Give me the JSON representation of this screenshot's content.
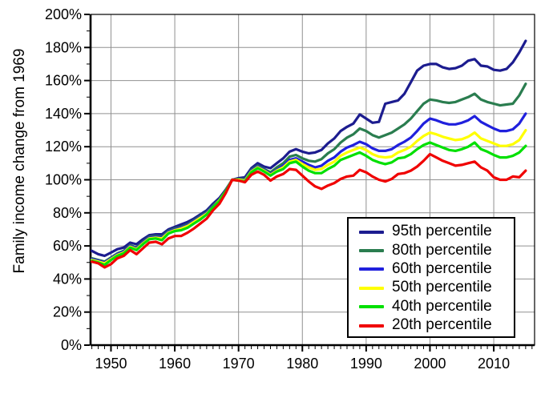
{
  "chart_data": {
    "type": "line",
    "title": "",
    "xlabel": "",
    "ylabel": "Family income change from 1969",
    "xlim": [
      1946.8,
      2016.4
    ],
    "ylim": [
      0,
      200
    ],
    "grid": true,
    "legend_position": "bottom-right",
    "x_major_ticks": [
      1950,
      1960,
      1970,
      1980,
      1990,
      2000,
      2010
    ],
    "x_tick_labels": [
      "1950",
      "1960",
      "1970",
      "1980",
      "1990",
      "2000",
      "2010"
    ],
    "x_minor_tick_step": 1,
    "y_major_ticks": [
      0,
      20,
      40,
      60,
      80,
      100,
      120,
      140,
      160,
      180,
      200
    ],
    "y_tick_labels": [
      "0%",
      "20%",
      "40%",
      "60%",
      "80%",
      "100%",
      "120%",
      "140%",
      "160%",
      "180%",
      "200%"
    ],
    "y_minor_tick_step": 10,
    "grid_color": "#909090",
    "x": [
      1947,
      1948,
      1949,
      1950,
      1951,
      1952,
      1953,
      1954,
      1955,
      1956,
      1957,
      1958,
      1959,
      1960,
      1961,
      1962,
      1963,
      1964,
      1965,
      1966,
      1967,
      1968,
      1969,
      1970,
      1971,
      1972,
      1973,
      1974,
      1975,
      1976,
      1977,
      1978,
      1979,
      1980,
      1981,
      1982,
      1983,
      1984,
      1985,
      1986,
      1987,
      1988,
      1989,
      1990,
      1991,
      1992,
      1993,
      1994,
      1995,
      1996,
      1997,
      1998,
      1999,
      2000,
      2001,
      2002,
      2003,
      2004,
      2005,
      2006,
      2007,
      2008,
      2009,
      2010,
      2011,
      2012,
      2013,
      2014,
      2015
    ],
    "series": [
      {
        "name": "95th percentile",
        "color": "#1c1c8f",
        "values": [
          57,
          55,
          54,
          56,
          58,
          59,
          62,
          61,
          64,
          66.5,
          67,
          67,
          70,
          71.5,
          73,
          74.5,
          76.5,
          79,
          81.5,
          85.5,
          89,
          94,
          100,
          101,
          101.5,
          107,
          110,
          108,
          107,
          110,
          113,
          117,
          118.5,
          117,
          116,
          116.5,
          118,
          122,
          125,
          129.5,
          132,
          134,
          139.5,
          137,
          134.5,
          135,
          146,
          147,
          148,
          152,
          159,
          166,
          169,
          170,
          170,
          168,
          167,
          167.5,
          169,
          172,
          173,
          169,
          168.5,
          166.5,
          166,
          167,
          171,
          177,
          184
        ]
      },
      {
        "name": "80th percentile",
        "color": "#2a7d4f",
        "values": [
          52.5,
          51.5,
          50.5,
          53,
          55.5,
          57,
          60.5,
          59,
          62.5,
          65.5,
          66,
          65.5,
          69,
          70.5,
          71.5,
          73,
          75.5,
          78,
          80.5,
          84.5,
          88,
          93.5,
          100,
          100.5,
          100.5,
          106,
          108.5,
          106.5,
          104.5,
          107.5,
          110,
          114,
          115,
          113,
          111.5,
          111,
          112.5,
          116,
          118.5,
          122.5,
          125.5,
          127.5,
          131,
          129.5,
          127,
          125.5,
          127,
          128.5,
          131,
          133.5,
          137,
          141.5,
          146,
          148.5,
          148,
          147,
          146.5,
          147,
          148.5,
          150,
          152,
          148.5,
          147,
          146,
          145,
          145.5,
          146,
          151,
          158
        ]
      },
      {
        "name": "60th percentile",
        "color": "#2020dd",
        "values": [
          52,
          51,
          50,
          52.5,
          55,
          56.5,
          60,
          58.5,
          62,
          65,
          65.5,
          65,
          68.5,
          70,
          71,
          72.5,
          75,
          77.5,
          80,
          84,
          87.5,
          93,
          100,
          100,
          100,
          105.5,
          108,
          106,
          103.5,
          106,
          108.5,
          112,
          113,
          111,
          109,
          107.5,
          108.5,
          111.5,
          113.5,
          117,
          119.5,
          121,
          123,
          121.5,
          119,
          117.5,
          117.5,
          118.5,
          121,
          123,
          125.5,
          129.5,
          134,
          137,
          136,
          134.5,
          133.5,
          133.5,
          134.5,
          136,
          138.5,
          135,
          133,
          131,
          129.5,
          129.5,
          130.5,
          134,
          140
        ]
      },
      {
        "name": "50th percentile",
        "color": "#ffff00",
        "values": [
          51.5,
          50.5,
          49.5,
          52,
          54.5,
          56,
          59.5,
          58,
          61.5,
          64.5,
          65,
          64.5,
          68,
          69.5,
          70.5,
          72,
          74.5,
          77,
          79.5,
          83.5,
          87.5,
          93,
          100,
          100,
          99.5,
          105,
          107.5,
          105.5,
          103,
          105.5,
          107.5,
          111,
          112,
          109.5,
          107.5,
          106,
          106.5,
          109,
          111,
          114.5,
          116.5,
          118,
          119.5,
          118,
          115.5,
          114,
          113.5,
          114,
          116.5,
          118,
          120,
          123.5,
          126.5,
          128.5,
          127.5,
          126,
          125,
          124,
          124.5,
          126,
          128.5,
          125,
          123.5,
          122,
          120.5,
          120.5,
          121.5,
          124,
          130
        ]
      },
      {
        "name": "40th percentile",
        "color": "#00e000",
        "values": [
          51,
          50,
          48.5,
          51.5,
          54,
          55.5,
          59,
          57.5,
          61,
          64,
          64.5,
          63.5,
          67.5,
          69,
          69.5,
          71,
          73.5,
          76,
          79,
          83.5,
          87,
          93,
          100,
          99.5,
          99,
          104.5,
          107,
          105,
          102.5,
          105,
          106.5,
          110,
          111,
          108,
          105.5,
          104,
          104,
          106.5,
          108.5,
          112,
          113.5,
          115,
          116.5,
          114.5,
          112,
          110.5,
          109.5,
          110.5,
          113,
          113.5,
          115.5,
          118.5,
          121,
          122.5,
          121,
          119.5,
          118,
          117.5,
          118.5,
          120,
          122.5,
          118.5,
          117,
          115,
          113.5,
          113.5,
          114.5,
          116.5,
          120.5
        ]
      },
      {
        "name": "20th percentile",
        "color": "#f00000",
        "values": [
          50.5,
          49.5,
          47,
          49,
          52.5,
          54,
          57.5,
          55,
          58.5,
          62,
          62.5,
          61,
          64.5,
          66,
          66,
          68,
          70.5,
          73.5,
          76.5,
          81.5,
          85.5,
          92,
          100,
          99.5,
          98.5,
          103,
          105,
          103,
          99.5,
          102,
          103.5,
          106.5,
          106,
          102.5,
          99,
          96,
          94.5,
          96.5,
          98,
          100.5,
          102,
          102.5,
          106,
          104.5,
          102,
          100,
          99,
          100.5,
          103.5,
          104,
          105.5,
          108,
          111.5,
          115.5,
          113.5,
          111.5,
          110,
          108.5,
          109,
          110,
          111,
          107.5,
          105.5,
          101.5,
          100,
          100,
          102,
          101.5,
          105.5
        ]
      }
    ]
  }
}
